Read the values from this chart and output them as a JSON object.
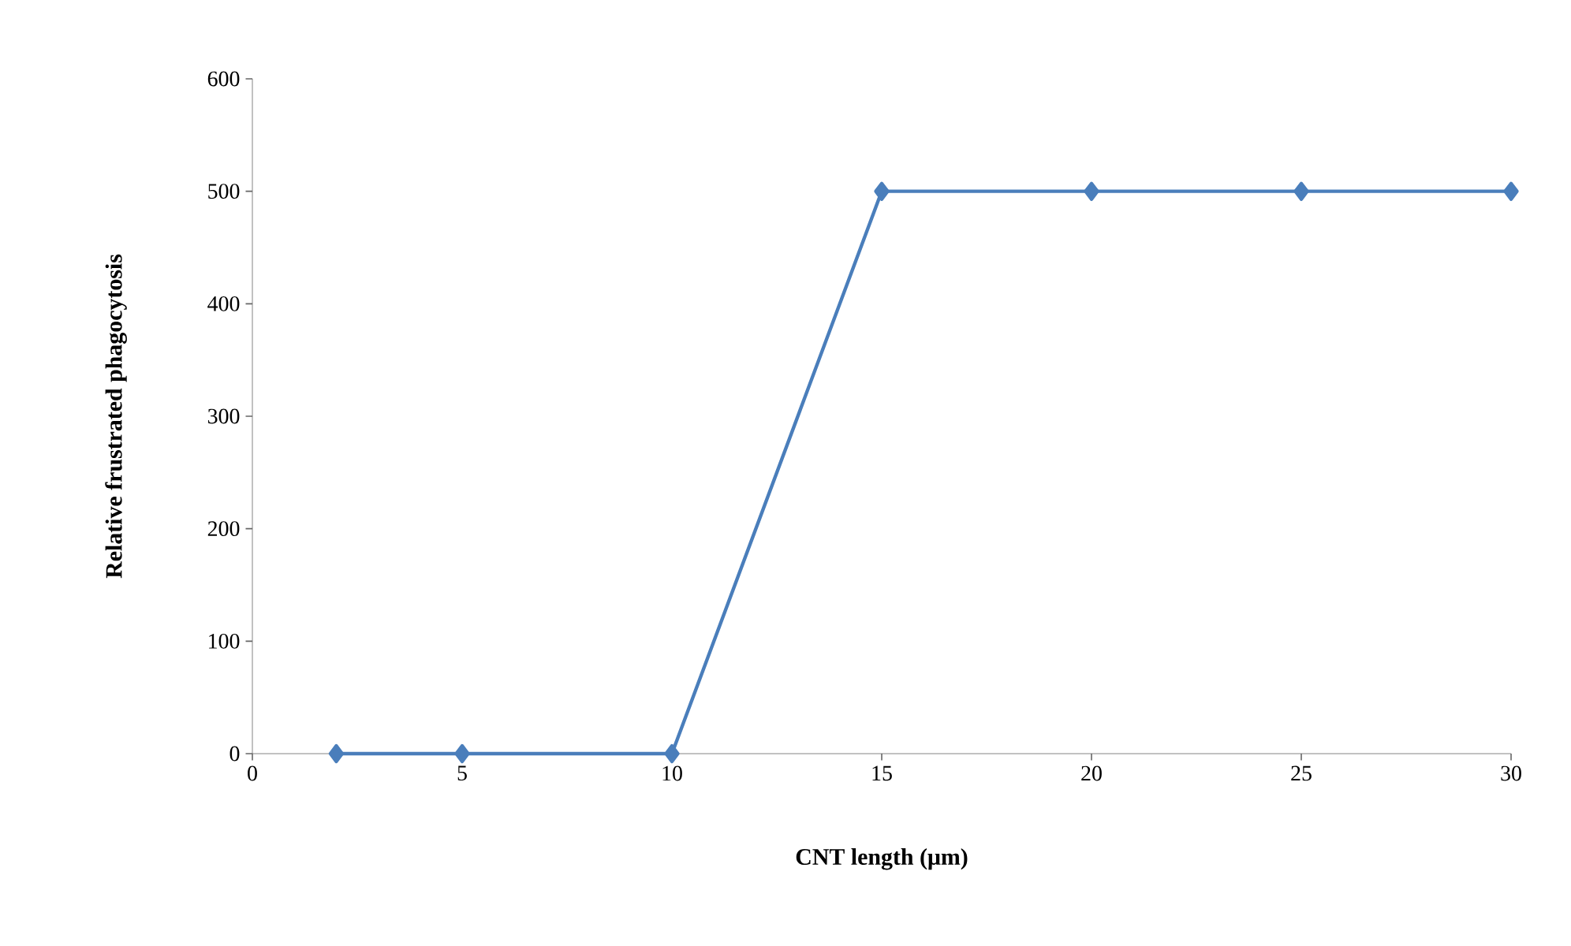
{
  "chart_data": {
    "type": "line",
    "xlabel": "CNT length (μm)",
    "ylabel": "Relative frustrated phagocytosis",
    "x": [
      2,
      5,
      10,
      15,
      20,
      25,
      30
    ],
    "series": [
      {
        "color": "#4a7ebb",
        "values": [
          0,
          0,
          0,
          500,
          500,
          500,
          500
        ]
      }
    ],
    "xlim": [
      0,
      30
    ],
    "xticks": [
      0,
      5,
      10,
      15,
      20,
      25,
      30
    ],
    "ylim": [
      0,
      600
    ],
    "yticks": [
      0,
      100,
      200,
      300,
      400,
      500,
      600
    ],
    "grid": false,
    "marker": "diamond",
    "line_style": "solid"
  }
}
